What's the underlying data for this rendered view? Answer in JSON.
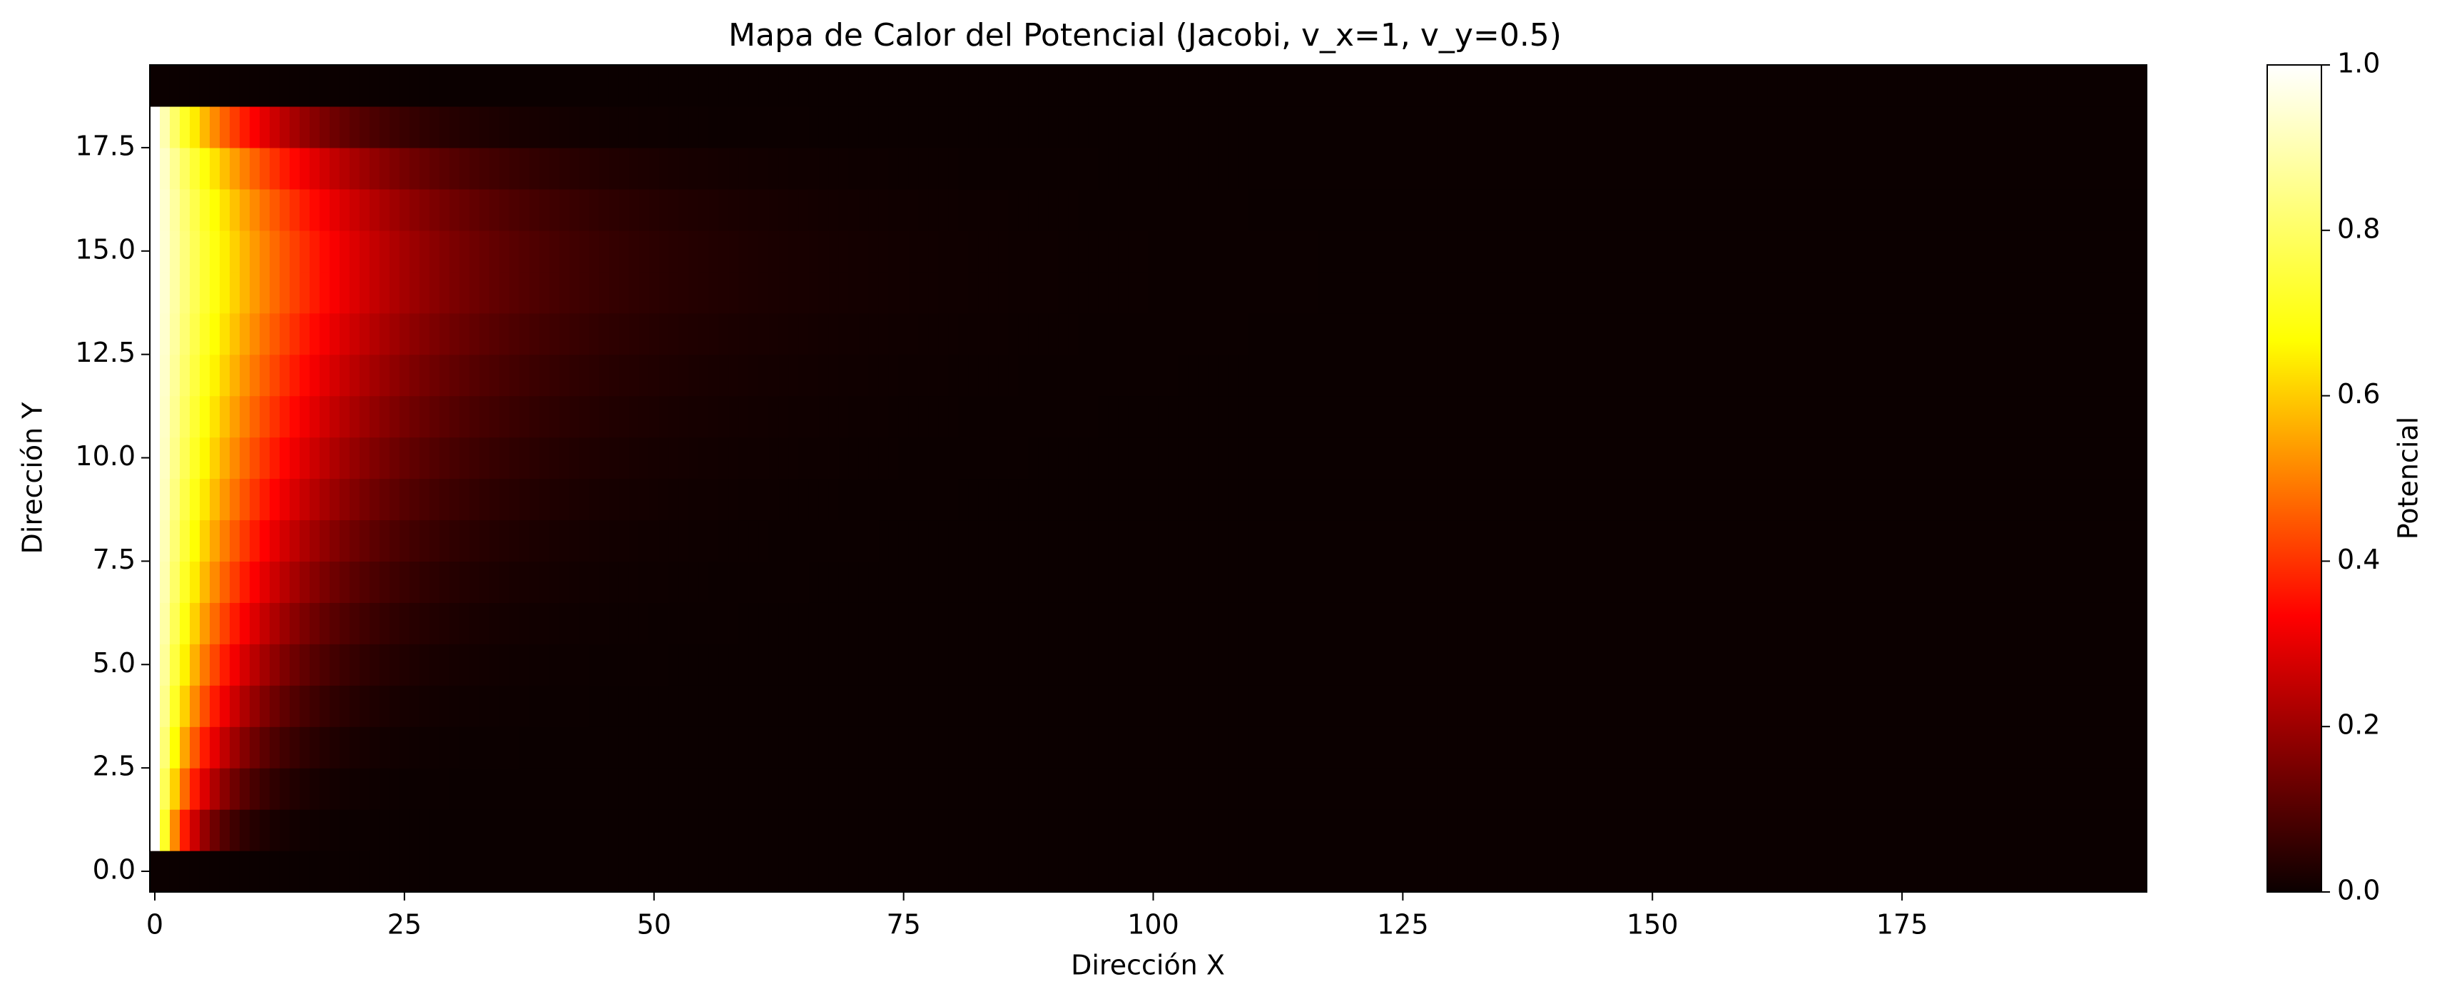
{
  "chart_data": {
    "type": "heatmap",
    "title": "Mapa de Calor del Potencial (Jacobi, v_x=1, v_y=0.5)",
    "xlabel": "Dirección X",
    "ylabel": "Dirección Y",
    "colormap": "hot",
    "colormap_stops": [
      "#0b0000",
      "#ff0000",
      "#ffff00",
      "#ffffff"
    ],
    "grid": false,
    "xlim": [
      -0.5,
      199.5
    ],
    "ylim": [
      -0.5,
      19.5
    ],
    "x_ticks": [
      0,
      25,
      50,
      75,
      100,
      125,
      150,
      175
    ],
    "x_tick_labels": [
      "0",
      "25",
      "50",
      "75",
      "100",
      "125",
      "150",
      "175"
    ],
    "y_ticks": [
      0,
      2.5,
      5,
      7.5,
      10,
      12.5,
      15,
      17.5
    ],
    "y_tick_labels": [
      "0.0",
      "2.5",
      "5.0",
      "7.5",
      "10.0",
      "12.5",
      "15.0",
      "17.5"
    ],
    "grid_size": {
      "nx": 200,
      "ny": 20
    },
    "boundary_rows_value": 0.0,
    "column_0_value": 1.0,
    "decay_lengths_by_row": [
      0,
      3,
      4,
      5,
      6,
      7,
      8,
      9,
      10,
      11,
      12,
      13,
      14,
      15,
      16,
      16,
      15,
      13,
      9,
      0
    ],
    "colorbar": {
      "label": "Potencial",
      "range": [
        0.0,
        1.0
      ],
      "ticks": [
        0.0,
        0.2,
        0.4,
        0.6,
        0.8,
        1.0
      ],
      "tick_labels": [
        "0.0",
        "0.2",
        "0.4",
        "0.6",
        "0.8",
        "1.0"
      ]
    }
  }
}
